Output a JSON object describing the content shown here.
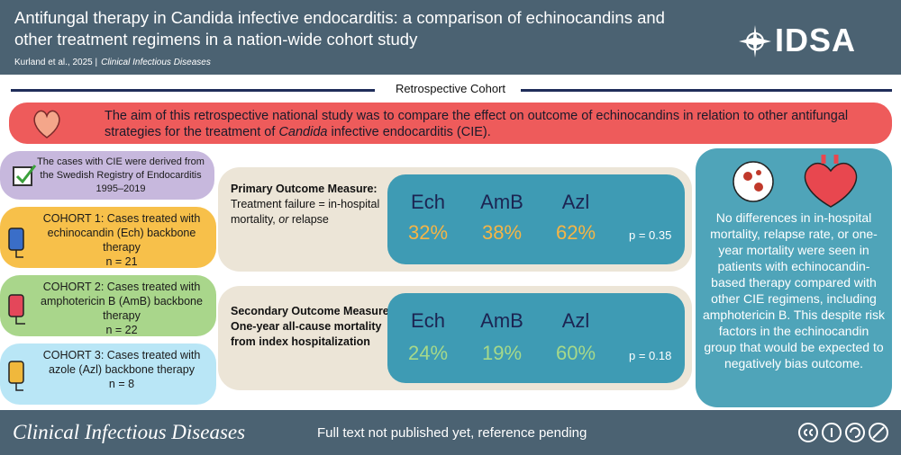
{
  "header": {
    "title": "Antifungal therapy in Candida infective endocarditis: a comparison of echinocandins and other treatment regimens in a nation-wide cohort study",
    "citation": "Kurland et al., 2025 |",
    "journal": "Clinical Infectious Diseases",
    "logo": "IDSA"
  },
  "section_label": "Retrospective Cohort",
  "aim": {
    "before": "The aim of this retrospective national study was to compare the effect on outcome of echinocandins in relation to other antifungal strategies for the treatment of ",
    "italic": "Candida",
    "after": " infective endocarditis (CIE)."
  },
  "source": "The cases with CIE were derived from the Swedish Registry of Endocarditis 1995–2019",
  "cohorts": [
    {
      "label": "COHORT 1: Cases treated with echinocandin (Ech) backbone therapy",
      "n": "n = 21"
    },
    {
      "label": "COHORT 2: Cases treated with amphotericin B (AmB) backbone therapy",
      "n": "n = 22"
    },
    {
      "label": "COHORT 3: Cases treated with azole (Azl) backbone therapy",
      "n": "n = 8"
    }
  ],
  "outcomes": [
    {
      "title": "Primary Outcome Measure:",
      "definition_before": "Treatment failure = in-hospital mortality, ",
      "definition_italic": "or",
      "definition_after": " relapse",
      "groups": [
        "Ech",
        "AmB",
        "Azl"
      ],
      "results": [
        "32%",
        "38%",
        "62%"
      ],
      "p_value": "p = 0.35"
    },
    {
      "title": "Secondary Outcome Measure:",
      "definition": "One-year all-cause mortality from index hospitalization",
      "groups": [
        "Ech",
        "AmB",
        "Azl"
      ],
      "results": [
        "24%",
        "19%",
        "60%"
      ],
      "p_value": "p = 0.18"
    }
  ],
  "conclusion": "No differences in in-hospital mortality, relapse rate, or one-year mortality were seen in patients with echinocandin-based therapy compared with other CIE regimens, including amphotericin B. This despite risk factors in the echinocandin group that would be expected to negatively bias outcome.",
  "footer": {
    "journal": "Clinical Infectious Diseases",
    "note": "Full text not published yet, reference pending"
  }
}
